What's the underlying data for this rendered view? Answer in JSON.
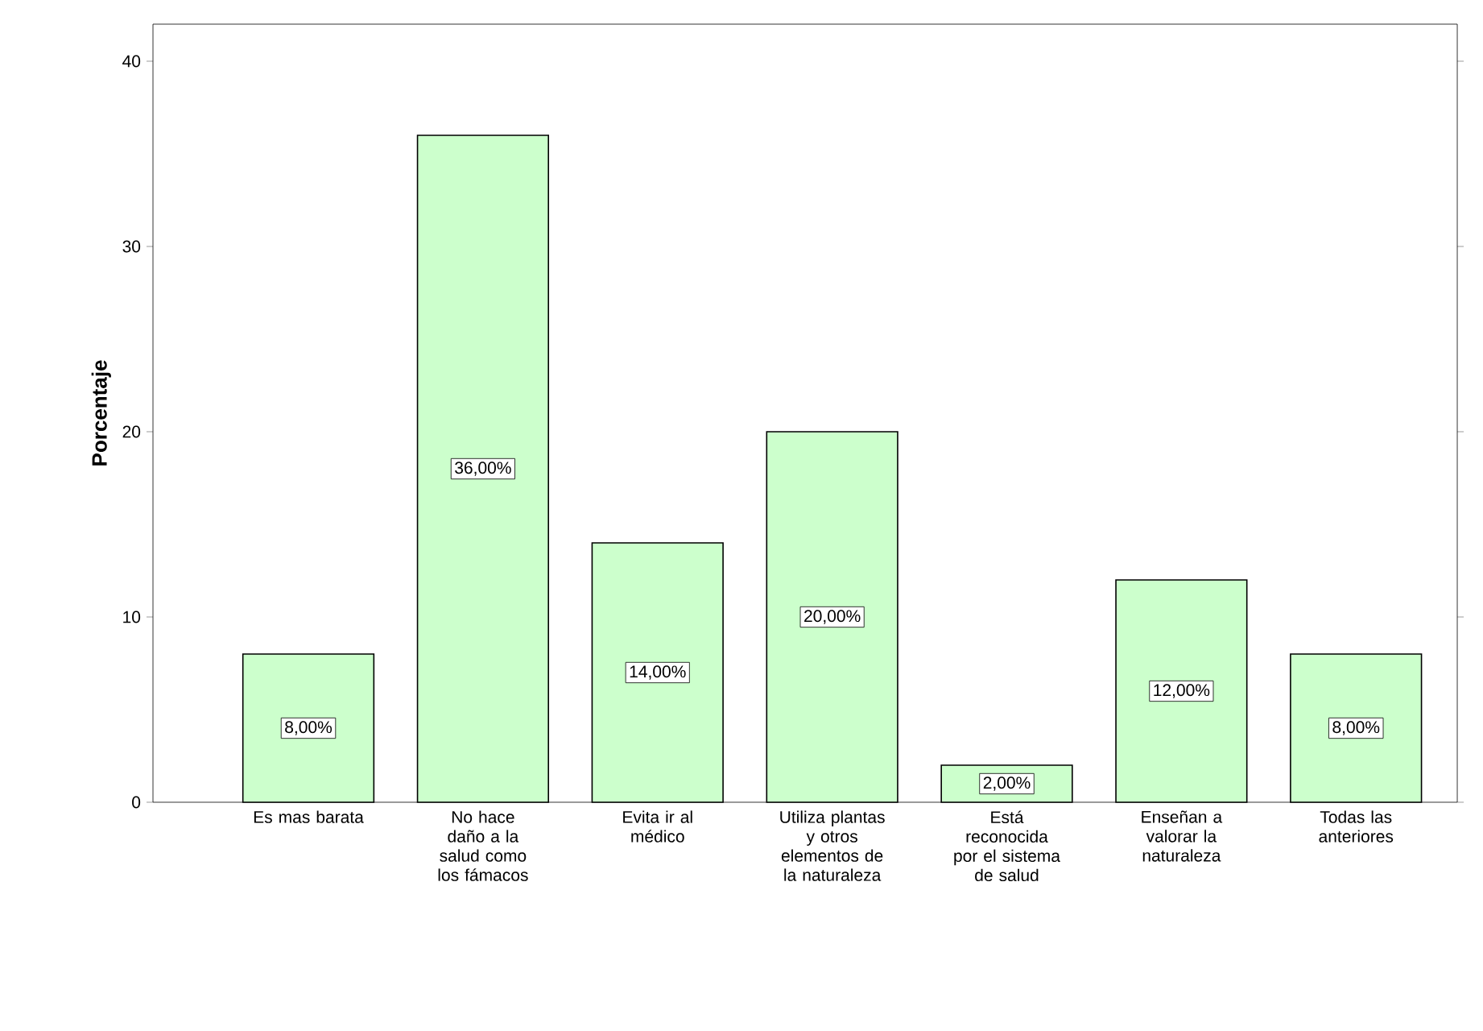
{
  "chart_data": {
    "type": "bar",
    "ylabel": "Porcentaje",
    "categories": [
      "Es mas barata",
      "No hace daño a la salud como los fámacos",
      "Evita ir al médico",
      "Utiliza plantas y otros elementos de la naturaleza",
      "Está reconocida por el sistema de salud",
      "Enseñan a valorar la naturaleza",
      "Todas las anteriores"
    ],
    "values": [
      8,
      36,
      14,
      20,
      2,
      12,
      8
    ],
    "value_labels": [
      "8,00%",
      "36,00%",
      "14,00%",
      "20,00%",
      "2,00%",
      "12,00%",
      "8,00%"
    ],
    "color": "#ccffcc",
    "ylim": [
      0,
      42
    ],
    "yticks": [
      0,
      10,
      20,
      30,
      40
    ],
    "grid": false
  }
}
